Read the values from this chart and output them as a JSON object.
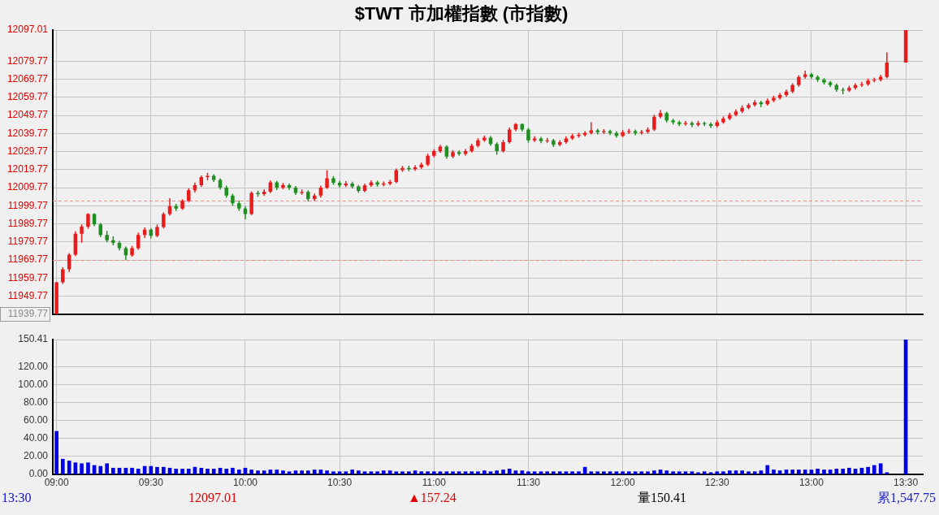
{
  "chart_data": [
    {
      "type": "candlestick",
      "title": "$TWT 市加權指數 (市指數)",
      "x": [
        9,
        9.033,
        9.067,
        9.1,
        9.133,
        9.167,
        9.2,
        9.233,
        9.267,
        9.3,
        9.333,
        9.367,
        9.4,
        9.433,
        9.467,
        9.5,
        9.533,
        9.567,
        9.6,
        9.633,
        9.667,
        9.7,
        9.733,
        9.767,
        9.8,
        9.833,
        9.867,
        9.9,
        9.933,
        9.967,
        10,
        10.033,
        10.067,
        10.1,
        10.133,
        10.167,
        10.2,
        10.233,
        10.267,
        10.3,
        10.333,
        10.367,
        10.4,
        10.433,
        10.467,
        10.5,
        10.533,
        10.567,
        10.6,
        10.633,
        10.667,
        10.7,
        10.733,
        10.767,
        10.8,
        10.833,
        10.867,
        10.9,
        10.933,
        10.967,
        11,
        11.033,
        11.067,
        11.1,
        11.133,
        11.167,
        11.2,
        11.233,
        11.267,
        11.3,
        11.333,
        11.367,
        11.4,
        11.433,
        11.467,
        11.5,
        11.533,
        11.567,
        11.6,
        11.633,
        11.667,
        11.7,
        11.733,
        11.767,
        11.8,
        11.833,
        11.867,
        11.9,
        11.933,
        11.967,
        12,
        12.033,
        12.067,
        12.1,
        12.133,
        12.167,
        12.2,
        12.233,
        12.267,
        12.3,
        12.333,
        12.367,
        12.4,
        12.433,
        12.467,
        12.5,
        12.533,
        12.567,
        12.6,
        12.633,
        12.667,
        12.7,
        12.733,
        12.767,
        12.8,
        12.833,
        12.867,
        12.9,
        12.933,
        12.967,
        13,
        13.033,
        13.067,
        13.1,
        13.133,
        13.167,
        13.2,
        13.233,
        13.267,
        13.3,
        13.333,
        13.367,
        13.4,
        13.5
      ],
      "ohlc": [
        [
          11939.77,
          11957.6,
          11939.77,
          11957.4
        ],
        [
          11957.4,
          11965.8,
          11956.5,
          11964.6
        ],
        [
          11964.6,
          11973.5,
          11963.2,
          11972.7
        ],
        [
          11972.7,
          11985.6,
          11971.9,
          11984.3
        ],
        [
          11984.3,
          11989.5,
          11979.4,
          11988.2
        ],
        [
          11988.2,
          11995.6,
          11987.1,
          11995.2
        ],
        [
          11995.2,
          11995.6,
          11988.4,
          11989.5
        ],
        [
          11989.5,
          11990.3,
          11982.5,
          11983.6
        ],
        [
          11983.6,
          11985.9,
          11979.6,
          11980.7
        ],
        [
          11980.7,
          11982.8,
          11977.9,
          11979.2
        ],
        [
          11979.2,
          11980.4,
          11975.1,
          11976.3
        ],
        [
          11976.3,
          11977.2,
          11969.8,
          11972.4
        ],
        [
          11972.4,
          11977.5,
          11971.6,
          11976.3
        ],
        [
          11976.3,
          11984.9,
          11975.4,
          11983.6
        ],
        [
          11983.6,
          11987.8,
          11981.9,
          11986.5
        ],
        [
          11986.5,
          11987.4,
          11981.7,
          11983.2
        ],
        [
          11983.2,
          11989.3,
          11982.4,
          11988
        ],
        [
          11988,
          11996.1,
          11987.2,
          11995.2
        ],
        [
          11995.2,
          12004,
          11994.3,
          11999.6
        ],
        [
          11999.6,
          12000.8,
          11996.9,
          11998.2
        ],
        [
          11998.2,
          12003.4,
          11997.5,
          12002.5
        ],
        [
          12002.5,
          12009.4,
          12001.8,
          12008.3
        ],
        [
          12008.3,
          12012.6,
          12007.1,
          12011.2
        ],
        [
          12011.2,
          12016.5,
          12010.3,
          12015.6
        ],
        [
          12015.6,
          12018,
          12013.9,
          12016.3
        ],
        [
          12016.3,
          12017.2,
          12013,
          12014.1
        ],
        [
          12014.1,
          12015,
          12008.7,
          12009.8
        ],
        [
          12009.8,
          12010.9,
          12004.2,
          12005.4
        ],
        [
          12005.4,
          12006.3,
          11999.8,
          12001.1
        ],
        [
          12001.1,
          12002.6,
          11997,
          11998.2
        ],
        [
          11998.2,
          11999.5,
          11992.3,
          11995.2
        ],
        [
          11995.2,
          12007.8,
          11994.6,
          12006.9
        ],
        [
          12006.9,
          12008.1,
          12004.8,
          12006.2
        ],
        [
          12006.2,
          12008.9,
          12005.3,
          12007.6
        ],
        [
          12007.6,
          12013.9,
          12006.8,
          12012.7
        ],
        [
          12012.7,
          12013.5,
          12008.4,
          12009.8
        ],
        [
          12009.8,
          12012.4,
          12008.9,
          12011.2
        ],
        [
          12011.2,
          12012.1,
          12008.6,
          12009.8
        ],
        [
          12009.8,
          12010.7,
          12005.8,
          12006.9
        ],
        [
          12006.9,
          12008.8,
          12005.9,
          12007.5
        ],
        [
          12007.5,
          12008.3,
          12002.2,
          12003.5
        ],
        [
          12003.5,
          12006.6,
          12002.4,
          12005.4
        ],
        [
          12005.4,
          12010.9,
          12004.3,
          12009.8
        ],
        [
          12009.8,
          12019.5,
          12009.1,
          12015
        ],
        [
          12015,
          12016.2,
          12011.4,
          12012.5
        ],
        [
          12012.5,
          12013.6,
          12009.9,
          12011
        ],
        [
          12011,
          12013.4,
          12010.1,
          12012
        ],
        [
          12012,
          12013.1,
          12009.4,
          12010.5
        ],
        [
          12010.5,
          12011.3,
          12007,
          12008
        ],
        [
          12008,
          12012.1,
          12007.2,
          12011
        ],
        [
          12011,
          12013.8,
          12010.2,
          12012.7
        ],
        [
          12012.7,
          12013.6,
          12010.4,
          12011.5
        ],
        [
          12011.5,
          12013.2,
          12010.6,
          12012
        ],
        [
          12012,
          12014.1,
          12011.2,
          12013
        ],
        [
          12013,
          12020.4,
          12012.3,
          12019.5
        ],
        [
          12019.5,
          12021.8,
          12018.6,
          12020.7
        ],
        [
          12020.7,
          12021.9,
          12018.9,
          12020
        ],
        [
          12020,
          12022.2,
          12019.1,
          12021
        ],
        [
          12021,
          12023.6,
          12020.2,
          12022.5
        ],
        [
          12022.5,
          12028.6,
          12021.7,
          12027.5
        ],
        [
          12027.5,
          12031.1,
          12026.6,
          12030
        ],
        [
          12030,
          12033.5,
          12029.1,
          12032.5
        ],
        [
          12032.5,
          12033.3,
          12025.8,
          12027
        ],
        [
          12027,
          12030.6,
          12026.1,
          12029.5
        ],
        [
          12029.5,
          12030.4,
          12027.4,
          12028.5
        ],
        [
          12028.5,
          12031.2,
          12027.6,
          12030
        ],
        [
          12030,
          12034.1,
          12029.2,
          12033
        ],
        [
          12033,
          12037.1,
          12032.1,
          12036
        ],
        [
          12036,
          12038.6,
          12035.2,
          12037.5
        ],
        [
          12037.5,
          12038.3,
          12032.9,
          12034
        ],
        [
          12034,
          12034.9,
          12028,
          12030
        ],
        [
          12030,
          12036.2,
          12029.3,
          12035
        ],
        [
          12035,
          12043.1,
          12034.2,
          12042
        ],
        [
          12042,
          12045.5,
          12041.1,
          12045
        ],
        [
          12045,
          12045.3,
          12040.9,
          12042
        ],
        [
          12042,
          12042.8,
          12034.8,
          12036
        ],
        [
          12036,
          12038.2,
          12035.1,
          12037
        ],
        [
          12037,
          12037.9,
          12034.4,
          12035.5
        ],
        [
          12035.5,
          12037.3,
          12034.6,
          12036
        ],
        [
          12036,
          12036.8,
          12032.3,
          12033.5
        ],
        [
          12033.5,
          12036.1,
          12032.7,
          12035
        ],
        [
          12035,
          12038.2,
          12034.1,
          12037
        ],
        [
          12037,
          12039.6,
          12036.2,
          12038.5
        ],
        [
          12038.5,
          12040.2,
          12037.4,
          12039
        ],
        [
          12039,
          12041.1,
          12038.1,
          12040
        ],
        [
          12040,
          12046,
          12039.2,
          12041.5
        ],
        [
          12041.5,
          12042.4,
          12039.3,
          12040.5
        ],
        [
          12040.5,
          12042.2,
          12039.6,
          12041
        ],
        [
          12041,
          12041.8,
          12038.9,
          12040
        ],
        [
          12040,
          12040.9,
          12037.4,
          12038.5
        ],
        [
          12038.5,
          12041.6,
          12037.7,
          12040.5
        ],
        [
          12040.5,
          12042.3,
          12039.6,
          12041
        ],
        [
          12041,
          12041.9,
          12038.8,
          12040
        ],
        [
          12040,
          12041.7,
          12039.1,
          12040.6
        ],
        [
          12040.6,
          12043.2,
          12039.8,
          12042
        ],
        [
          12042,
          12050.1,
          12041.2,
          12049
        ],
        [
          12049,
          12052.7,
          12048.1,
          12051
        ],
        [
          12051,
          12051.8,
          12045.9,
          12047
        ],
        [
          12047,
          12047.9,
          12044.8,
          12046
        ],
        [
          12046,
          12046.9,
          12043.9,
          12045
        ],
        [
          12045,
          12046.7,
          12044.1,
          12045.5
        ],
        [
          12045.5,
          12046.4,
          12043.3,
          12044.5
        ],
        [
          12044.5,
          12046.8,
          12043.6,
          12045.5
        ],
        [
          12045.5,
          12046.3,
          12043.8,
          12045
        ],
        [
          12045,
          12045.9,
          12042.8,
          12044
        ],
        [
          12044,
          12047.2,
          12043.1,
          12046
        ],
        [
          12046,
          12049.1,
          12045.2,
          12048
        ],
        [
          12048,
          12051.2,
          12047.1,
          12050
        ],
        [
          12050,
          12053.1,
          12049.2,
          12052
        ],
        [
          12052,
          12055.3,
          12051.1,
          12054
        ],
        [
          12054,
          12056.6,
          12053.2,
          12055.5
        ],
        [
          12055.5,
          12058.2,
          12054.6,
          12057
        ],
        [
          12057,
          12057.9,
          12054.3,
          12056
        ],
        [
          12056,
          12059.1,
          12055.2,
          12058
        ],
        [
          12058,
          12060.6,
          12057.1,
          12059.5
        ],
        [
          12059.5,
          12062.2,
          12058.6,
          12061
        ],
        [
          12061,
          12064.1,
          12060.2,
          12063
        ],
        [
          12063,
          12067.6,
          12062.1,
          12066.5
        ],
        [
          12066.5,
          12072.1,
          12065.7,
          12071
        ],
        [
          12071,
          12074.5,
          12070.1,
          12072.5
        ],
        [
          12072.5,
          12073.3,
          12070.1,
          12071
        ],
        [
          12071,
          12071.9,
          12068.4,
          12069.5
        ],
        [
          12069.5,
          12070.4,
          12066.9,
          12068
        ],
        [
          12068,
          12068.8,
          12065.4,
          12066.5
        ],
        [
          12066.5,
          12067.3,
          12062.9,
          12064
        ],
        [
          12064,
          12065.1,
          12061.5,
          12063.5
        ],
        [
          12063.5,
          12066.2,
          12062.7,
          12065
        ],
        [
          12065,
          12067.6,
          12064.1,
          12066.5
        ],
        [
          12066.5,
          12068.3,
          12065.6,
          12067
        ],
        [
          12067,
          12070.1,
          12066.2,
          12069
        ],
        [
          12069,
          12070.6,
          12068.1,
          12069.5
        ],
        [
          12069.5,
          12072.2,
          12068.6,
          12071
        ],
        [
          12071,
          12084.7,
          12070.3,
          12079
        ],
        [
          12079,
          12097.01,
          12079,
          12097.01
        ]
      ],
      "xlim": [
        8.98,
        13.59
      ],
      "xticks": [
        {
          "value": 9,
          "label": null
        },
        {
          "value": 9.5,
          "label": null
        },
        {
          "value": 10,
          "label": null
        },
        {
          "value": 10.5,
          "label": null
        },
        {
          "value": 11,
          "label": null
        },
        {
          "value": 11.5,
          "label": null
        },
        {
          "value": 12,
          "label": null
        },
        {
          "value": 12.5,
          "label": null
        },
        {
          "value": 13,
          "label": null
        },
        {
          "value": 13.5,
          "label": null
        }
      ],
      "ylim": [
        11939.77,
        12097.01
      ],
      "yticks": [
        11939.77,
        11949.77,
        11959.77,
        11969.77,
        11979.77,
        11989.77,
        11999.77,
        12009.77,
        12019.77,
        12029.77,
        12039.77,
        12049.77,
        12059.77,
        12069.77,
        12079.77,
        12097.01
      ],
      "grid": true,
      "tick_labels": "y",
      "ref_lines": [
        {
          "axis": "y",
          "value": 11969.77,
          "color": "#e89090",
          "line_style": "dashed"
        },
        {
          "axis": "y",
          "value": 12002.4,
          "color": "#e89090",
          "line_style": "dashed"
        }
      ]
    },
    {
      "type": "bar",
      "x": [
        9,
        9.033,
        9.067,
        9.1,
        9.133,
        9.167,
        9.2,
        9.233,
        9.267,
        9.3,
        9.333,
        9.367,
        9.4,
        9.433,
        9.467,
        9.5,
        9.533,
        9.567,
        9.6,
        9.633,
        9.667,
        9.7,
        9.733,
        9.767,
        9.8,
        9.833,
        9.867,
        9.9,
        9.933,
        9.967,
        10,
        10.033,
        10.067,
        10.1,
        10.133,
        10.167,
        10.2,
        10.233,
        10.267,
        10.3,
        10.333,
        10.367,
        10.4,
        10.433,
        10.467,
        10.5,
        10.533,
        10.567,
        10.6,
        10.633,
        10.667,
        10.7,
        10.733,
        10.767,
        10.8,
        10.833,
        10.867,
        10.9,
        10.933,
        10.967,
        11,
        11.033,
        11.067,
        11.1,
        11.133,
        11.167,
        11.2,
        11.233,
        11.267,
        11.3,
        11.333,
        11.367,
        11.4,
        11.433,
        11.467,
        11.5,
        11.533,
        11.567,
        11.6,
        11.633,
        11.667,
        11.7,
        11.733,
        11.767,
        11.8,
        11.833,
        11.867,
        11.9,
        11.933,
        11.967,
        12,
        12.033,
        12.067,
        12.1,
        12.133,
        12.167,
        12.2,
        12.233,
        12.267,
        12.3,
        12.333,
        12.367,
        12.4,
        12.433,
        12.467,
        12.5,
        12.533,
        12.567,
        12.6,
        12.633,
        12.667,
        12.7,
        12.733,
        12.767,
        12.8,
        12.833,
        12.867,
        12.9,
        12.933,
        12.967,
        13,
        13.033,
        13.067,
        13.1,
        13.133,
        13.167,
        13.2,
        13.233,
        13.267,
        13.3,
        13.333,
        13.367,
        13.4,
        13.5
      ],
      "values": [
        48,
        17,
        15,
        13,
        12,
        13,
        10,
        9,
        12,
        7,
        7,
        7,
        7,
        6,
        9,
        9,
        8,
        8,
        7,
        6,
        6,
        6,
        8,
        7,
        6,
        6,
        7,
        6,
        7,
        5,
        7,
        5,
        4,
        4,
        5,
        5,
        4,
        3,
        4,
        4,
        4,
        5,
        5,
        4,
        3,
        3,
        3,
        5,
        4,
        3,
        3,
        3,
        4,
        4,
        3,
        3,
        3,
        4,
        3,
        3,
        3,
        3,
        3,
        3,
        3,
        3,
        3,
        3,
        4,
        3,
        4,
        5,
        6,
        4,
        4,
        3,
        3,
        3,
        3,
        3,
        3,
        3,
        3,
        3,
        8,
        3,
        3,
        3,
        3,
        3,
        3,
        3,
        3,
        3,
        3,
        4,
        5,
        4,
        3,
        3,
        3,
        3,
        2,
        3,
        2,
        3,
        3,
        4,
        4,
        4,
        3,
        3,
        4,
        10,
        5,
        4,
        5,
        5,
        5,
        5,
        5,
        6,
        5,
        5,
        6,
        6,
        7,
        6,
        7,
        8,
        10,
        12,
        2,
        150.41
      ],
      "color": "#0000e6",
      "xlim": [
        8.98,
        13.59
      ],
      "xticks": [
        {
          "value": 9,
          "label": "09:00"
        },
        {
          "value": 9.5,
          "label": "09:30"
        },
        {
          "value": 10,
          "label": "10:00"
        },
        {
          "value": 10.5,
          "label": "10:30"
        },
        {
          "value": 11,
          "label": "11:00"
        },
        {
          "value": 11.5,
          "label": "11:30"
        },
        {
          "value": 12,
          "label": "12:00"
        },
        {
          "value": 12.5,
          "label": "12:30"
        },
        {
          "value": 13,
          "label": "13:00"
        },
        {
          "value": 13.5,
          "label": "13:30"
        }
      ],
      "ylim": [
        0,
        150.41
      ],
      "yticks": [
        {
          "value": 0,
          "label": "0.00"
        },
        {
          "value": 20,
          "label": "20.00"
        },
        {
          "value": 40,
          "label": "40.00"
        },
        {
          "value": 60,
          "label": "60.00"
        },
        {
          "value": 80,
          "label": "80.00"
        },
        {
          "value": 100,
          "label": "100.00"
        },
        {
          "value": 120,
          "label": "120.00"
        },
        150.41
      ],
      "grid": true,
      "annotations": [
        "13:30",
        "12097.01",
        "▲157.24",
        "量150.41",
        "累1,547.75"
      ]
    }
  ]
}
